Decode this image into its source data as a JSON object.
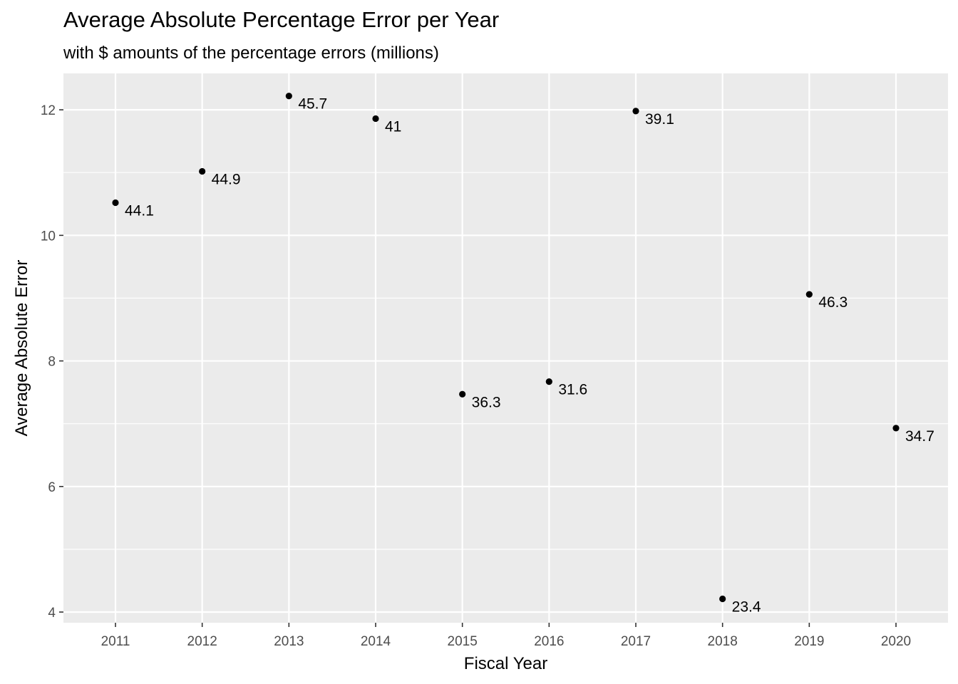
{
  "chart_data": {
    "type": "scatter",
    "title": "Average Absolute Percentage Error per Year",
    "subtitle": "with $ amounts of the percentage errors (millions)",
    "xlabel": "Fiscal Year",
    "ylabel": "Average Absolute Error",
    "x": [
      "2011",
      "2012",
      "2013",
      "2014",
      "2015",
      "2016",
      "2017",
      "2018",
      "2019",
      "2020"
    ],
    "y": [
      10.52,
      11.02,
      12.22,
      11.86,
      7.47,
      7.67,
      11.98,
      4.21,
      9.06,
      6.93
    ],
    "point_labels": [
      "44.1",
      "44.9",
      "45.7",
      "41",
      "36.3",
      "31.6",
      "39.1",
      "23.4",
      "46.3",
      "34.7"
    ],
    "x_ticks": [
      "2011",
      "2012",
      "2013",
      "2014",
      "2015",
      "2016",
      "2017",
      "2018",
      "2019",
      "2020"
    ],
    "y_ticks": [
      "4",
      "6",
      "8",
      "10",
      "12"
    ],
    "ylim": [
      3.83,
      12.58
    ],
    "grid": true,
    "legend": "none",
    "colors": {
      "panel": "#EBEBEB",
      "grid": "#FFFFFF",
      "point": "#000000",
      "tick_text": "#4D4D4D",
      "text": "#000000"
    }
  }
}
